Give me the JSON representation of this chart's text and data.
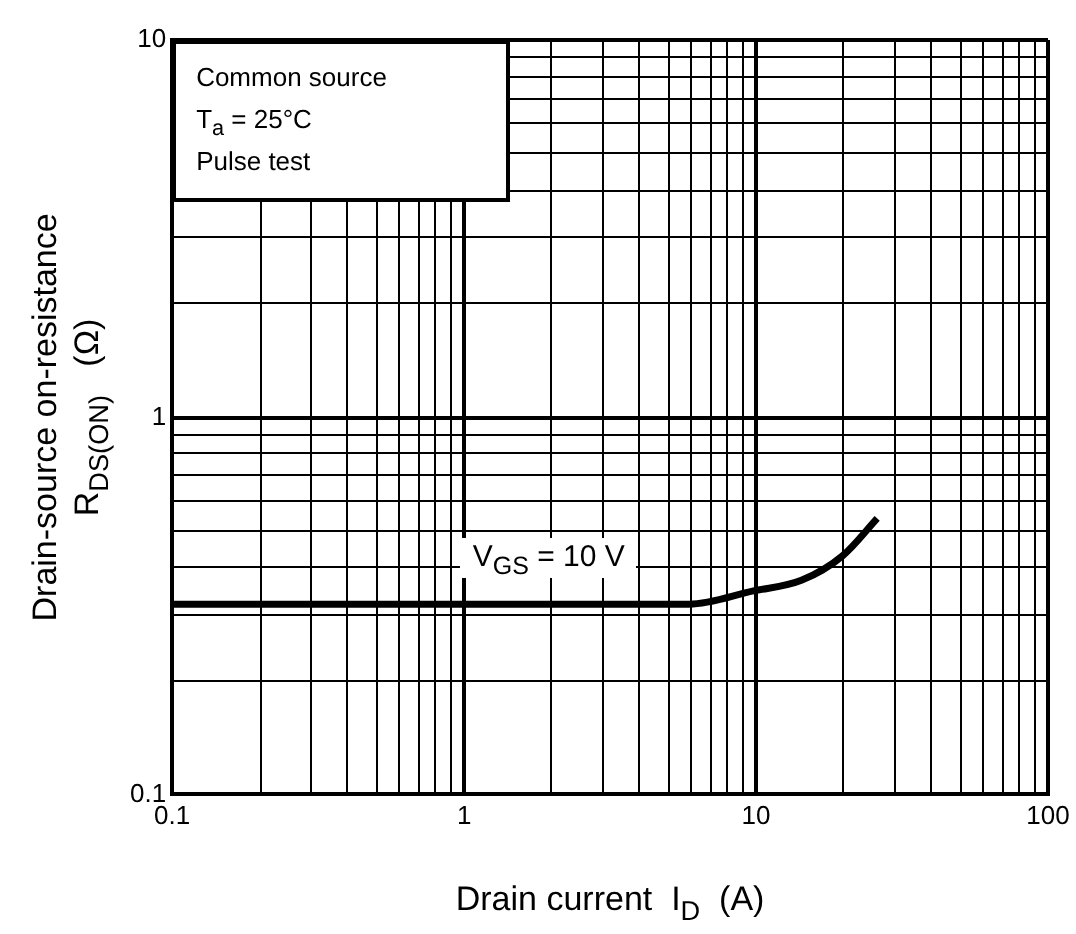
{
  "chart_data": {
    "type": "line",
    "xlabel": "Drain current  I$_{D}$  (A)",
    "ylabel": "Drain-source on-resistance\nR$_{DS(ON)}$   (Ω)",
    "annotations": [
      "Common source",
      "T$_{a}$ = 25°C",
      "Pulse test"
    ],
    "log": "xy",
    "grid": true,
    "xlim": [
      0.1,
      100
    ],
    "ylim": [
      0.1,
      10
    ],
    "xticks": [
      0.1,
      {
        "value": 0.2,
        "label": null
      },
      {
        "value": 0.3,
        "label": null
      },
      {
        "value": 0.4,
        "label": null
      },
      {
        "value": 0.5,
        "label": null
      },
      {
        "value": 0.6,
        "label": null
      },
      {
        "value": 0.7,
        "label": null
      },
      {
        "value": 0.8,
        "label": null
      },
      {
        "value": 0.9,
        "label": null
      },
      1,
      {
        "value": 2,
        "label": null
      },
      {
        "value": 3,
        "label": null
      },
      {
        "value": 4,
        "label": null
      },
      {
        "value": 5,
        "label": null
      },
      {
        "value": 6,
        "label": null
      },
      {
        "value": 7,
        "label": null
      },
      {
        "value": 8,
        "label": null
      },
      {
        "value": 9,
        "label": null
      },
      10,
      {
        "value": 20,
        "label": null
      },
      {
        "value": 30,
        "label": null
      },
      {
        "value": 40,
        "label": null
      },
      {
        "value": 50,
        "label": null
      },
      {
        "value": 60,
        "label": null
      },
      {
        "value": 70,
        "label": null
      },
      {
        "value": 80,
        "label": null
      },
      {
        "value": 90,
        "label": null
      },
      100
    ],
    "yticks": [
      0.1,
      {
        "value": 0.2,
        "label": null
      },
      {
        "value": 0.3,
        "label": null
      },
      {
        "value": 0.4,
        "label": null
      },
      {
        "value": 0.5,
        "label": null
      },
      {
        "value": 0.6,
        "label": null
      },
      {
        "value": 0.7,
        "label": null
      },
      {
        "value": 0.8,
        "label": null
      },
      {
        "value": 0.9,
        "label": null
      },
      1,
      {
        "value": 2,
        "label": null
      },
      {
        "value": 3,
        "label": null
      },
      {
        "value": 4,
        "label": null
      },
      {
        "value": 5,
        "label": null
      },
      {
        "value": 6,
        "label": null
      },
      {
        "value": 7,
        "label": null
      },
      {
        "value": 8,
        "label": null
      },
      {
        "value": 9,
        "label": null
      },
      10
    ],
    "series": [
      {
        "name": "V$_{GS}$ = 10 V",
        "color": "#000000",
        "x": [
          0.1,
          1,
          5.9,
          9.8,
          14.3,
          19.8,
          26
        ],
        "values": [
          0.32,
          0.32,
          0.32,
          0.347,
          0.37,
          0.43,
          0.54
        ]
      }
    ]
  }
}
